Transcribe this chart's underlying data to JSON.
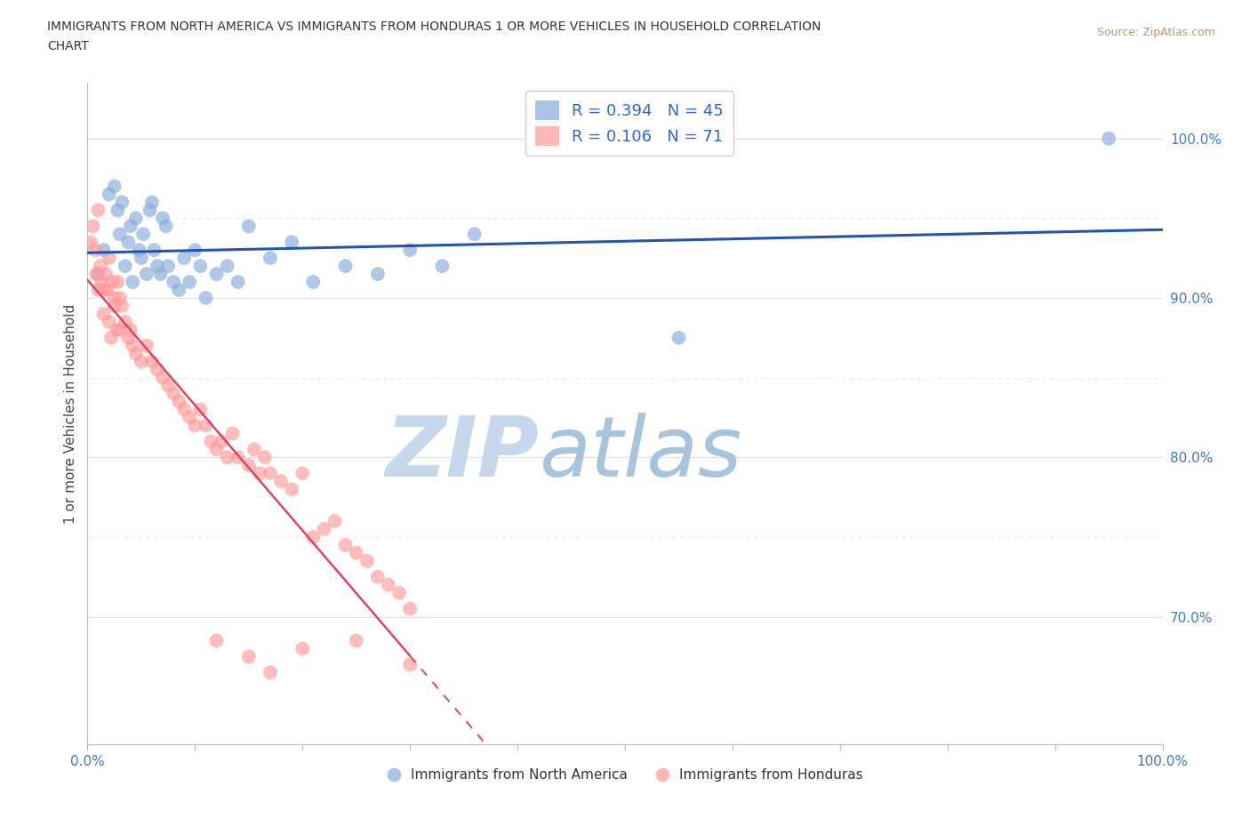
{
  "title": "IMMIGRANTS FROM NORTH AMERICA VS IMMIGRANTS FROM HONDURAS 1 OR MORE VEHICLES IN HOUSEHOLD CORRELATION\nCHART",
  "source": "Source: ZipAtlas.com",
  "ylabel": "1 or more Vehicles in Household",
  "xmin": 0.0,
  "xmax": 100.0,
  "ymin": 62.0,
  "ymax": 103.5,
  "blue_color": "#88AADD",
  "pink_color": "#FF9999",
  "trend_blue": "#2255AA",
  "trend_pink": "#DD4466",
  "R_blue": 0.394,
  "N_blue": 45,
  "R_pink": 0.106,
  "N_pink": 71,
  "blue_x": [
    1.0,
    1.5,
    2.0,
    2.5,
    2.8,
    3.0,
    3.2,
    3.5,
    3.8,
    4.0,
    4.2,
    4.5,
    4.8,
    5.0,
    5.2,
    5.5,
    5.8,
    6.0,
    6.2,
    6.5,
    6.8,
    7.0,
    7.3,
    7.5,
    8.0,
    8.5,
    9.0,
    9.5,
    10.0,
    10.5,
    11.0,
    12.0,
    13.0,
    14.0,
    15.0,
    17.0,
    19.0,
    21.0,
    24.0,
    27.0,
    30.0,
    33.0,
    36.0,
    55.0,
    95.0
  ],
  "blue_y": [
    91.5,
    93.0,
    96.5,
    97.0,
    95.5,
    94.0,
    96.0,
    92.0,
    93.5,
    94.5,
    91.0,
    95.0,
    93.0,
    92.5,
    94.0,
    91.5,
    95.5,
    96.0,
    93.0,
    92.0,
    91.5,
    95.0,
    94.5,
    92.0,
    91.0,
    90.5,
    92.5,
    91.0,
    93.0,
    92.0,
    90.0,
    91.5,
    92.0,
    91.0,
    94.5,
    92.5,
    93.5,
    91.0,
    92.0,
    91.5,
    93.0,
    92.0,
    94.0,
    87.5,
    100.0
  ],
  "pink_x": [
    0.3,
    0.5,
    0.7,
    0.8,
    1.0,
    1.0,
    1.2,
    1.3,
    1.5,
    1.5,
    1.7,
    1.8,
    2.0,
    2.0,
    2.2,
    2.3,
    2.5,
    2.5,
    2.7,
    2.8,
    3.0,
    3.0,
    3.2,
    3.5,
    3.8,
    4.0,
    4.2,
    4.5,
    5.0,
    5.5,
    6.0,
    6.5,
    7.0,
    7.5,
    8.0,
    8.5,
    9.0,
    9.5,
    10.0,
    10.5,
    11.0,
    11.5,
    12.0,
    12.5,
    13.0,
    13.5,
    14.0,
    15.0,
    15.5,
    16.0,
    16.5,
    17.0,
    18.0,
    19.0,
    20.0,
    21.0,
    22.0,
    23.0,
    24.0,
    25.0,
    26.0,
    27.0,
    28.0,
    29.0,
    30.0,
    12.0,
    15.0,
    17.0,
    20.0,
    25.0,
    30.0
  ],
  "pink_y": [
    93.5,
    94.5,
    93.0,
    91.5,
    95.5,
    90.5,
    92.0,
    91.0,
    90.5,
    89.0,
    91.5,
    90.5,
    88.5,
    92.5,
    87.5,
    91.0,
    90.0,
    89.5,
    88.0,
    91.0,
    90.0,
    88.0,
    89.5,
    88.5,
    87.5,
    88.0,
    87.0,
    86.5,
    86.0,
    87.0,
    86.0,
    85.5,
    85.0,
    84.5,
    84.0,
    83.5,
    83.0,
    82.5,
    82.0,
    83.0,
    82.0,
    81.0,
    80.5,
    81.0,
    80.0,
    81.5,
    80.0,
    79.5,
    80.5,
    79.0,
    80.0,
    79.0,
    78.5,
    78.0,
    79.0,
    75.0,
    75.5,
    76.0,
    74.5,
    74.0,
    73.5,
    72.5,
    72.0,
    71.5,
    70.5,
    68.5,
    67.5,
    66.5,
    68.0,
    68.5,
    67.0
  ],
  "watermark_zip": "ZIP",
  "watermark_atlas": "atlas",
  "watermark_color_zip": "#C5D8EC",
  "watermark_color_atlas": "#A8C4DC",
  "bg_color": "#FFFFFF",
  "grid_color": "#E0E0E0",
  "grid_color_dashed": "#DDDDDD"
}
